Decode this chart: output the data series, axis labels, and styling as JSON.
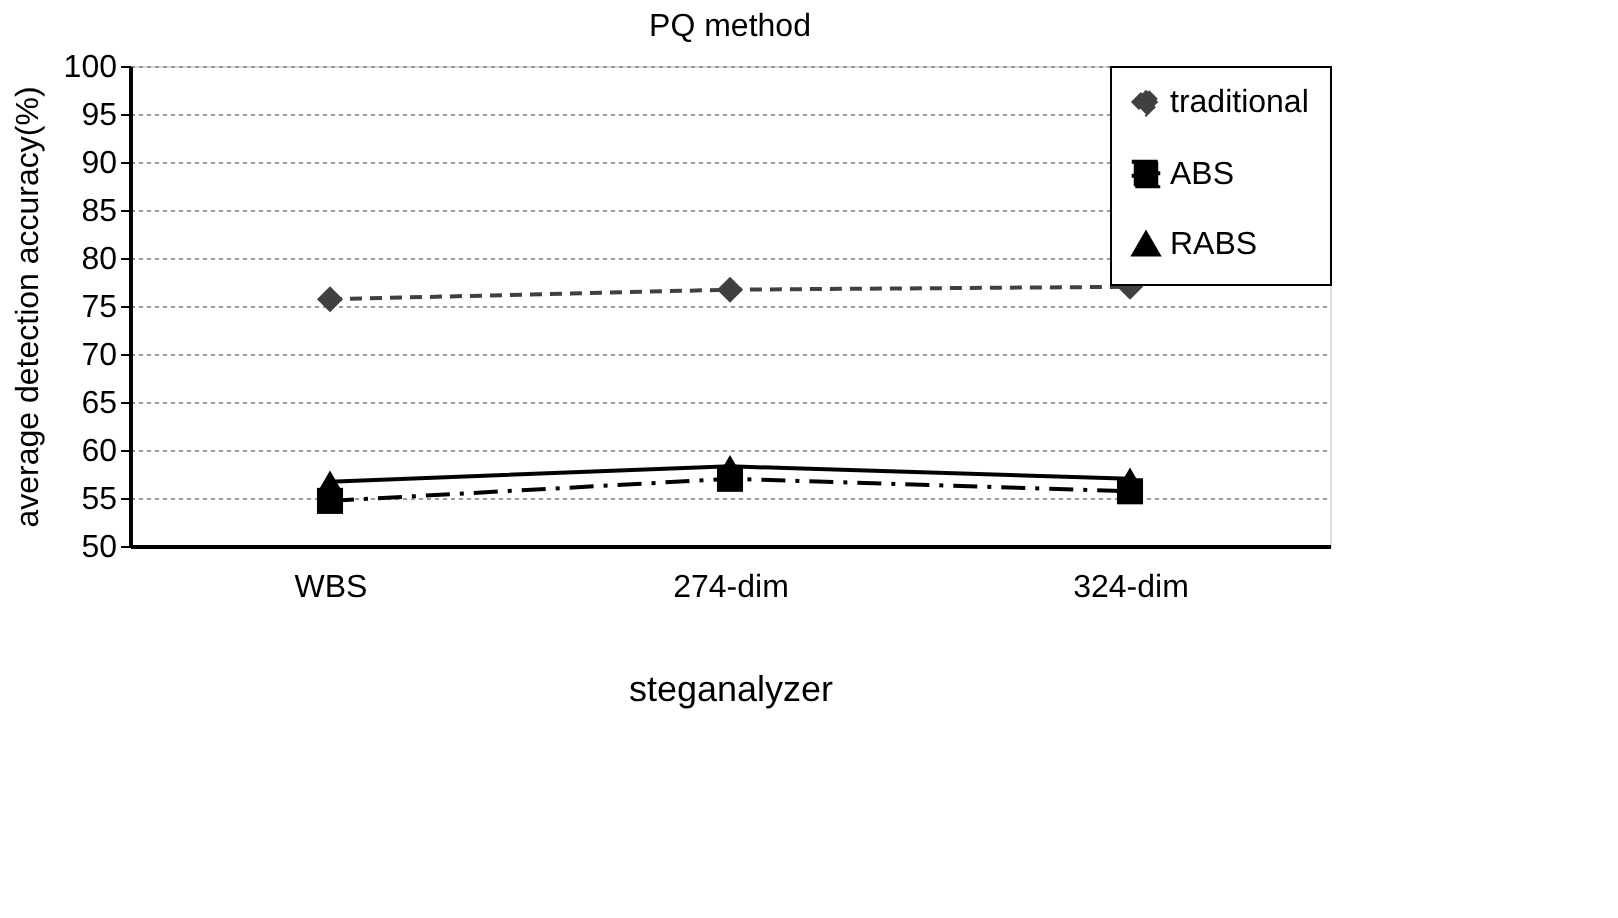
{
  "chart_data": {
    "type": "line",
    "title": "PQ method",
    "xlabel": "steganalyzer",
    "ylabel": "average detection accuracy(%)",
    "categories": [
      "WBS",
      "274-dim",
      "324-dim"
    ],
    "series": [
      {
        "name": "traditional",
        "color": "#404040",
        "values": [
          75.7,
          76.7,
          77.0
        ],
        "marker": "diamond",
        "line_style": "dashed"
      },
      {
        "name": "ABS",
        "color": "#000000",
        "values": [
          54.7,
          57.0,
          55.7
        ],
        "marker": "square",
        "line_style": "dashdot"
      },
      {
        "name": "RABS",
        "color": "#000000",
        "values": [
          56.7,
          58.3,
          57.0
        ],
        "marker": "triangle",
        "line_style": "solid"
      }
    ],
    "ylim": [
      50,
      100
    ],
    "yticks": [
      50,
      55,
      60,
      65,
      70,
      75,
      80,
      85,
      90,
      95,
      100
    ],
    "grid": "y",
    "legend": "top right"
  }
}
